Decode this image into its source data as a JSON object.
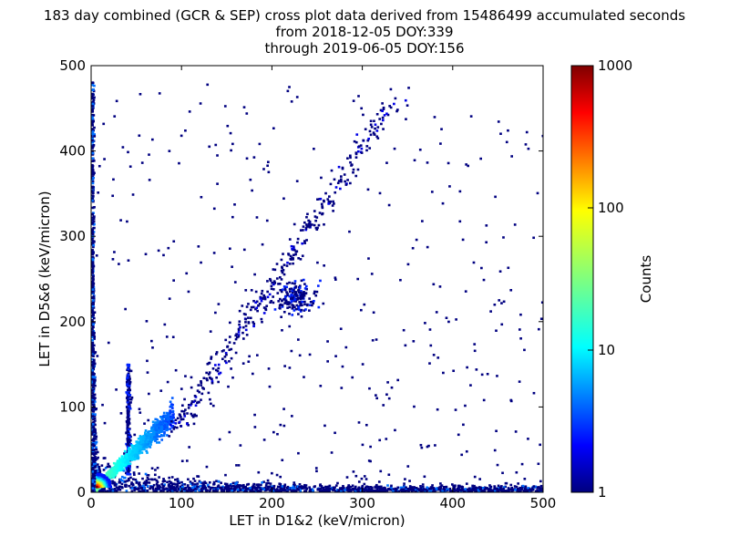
{
  "chart_data": {
    "type": "heatmap",
    "title_lines": [
      "183 day combined (GCR & SEP) cross plot data derived from 15486499 accumulated seconds",
      "from 2018-12-05 DOY:339",
      "through 2019-06-05 DOY:156"
    ],
    "xlabel": "LET in D1&2 (keV/micron)",
    "ylabel": "LET in D5&6 (keV/micron)",
    "xlim": [
      0,
      500
    ],
    "ylim": [
      0,
      500
    ],
    "x_ticks": [
      0,
      100,
      200,
      300,
      400,
      500
    ],
    "y_ticks": [
      0,
      100,
      200,
      300,
      400,
      500
    ],
    "x_tick_labels": [
      "0",
      "100",
      "200",
      "300",
      "400",
      "500"
    ],
    "y_tick_labels": [
      "0",
      "100",
      "200",
      "300",
      "400",
      "500"
    ],
    "colorbar": {
      "label": "Counts",
      "scale": "log",
      "range": [
        1,
        1000
      ],
      "ticks": [
        1,
        10,
        100,
        1000
      ],
      "tick_labels": [
        "1",
        "10",
        "100",
        "1000"
      ],
      "colormap": "jet"
    },
    "structures": [
      {
        "kind": "core",
        "x": 5,
        "y": 5,
        "counts": 1000
      },
      {
        "kind": "diagonal-band",
        "x_range": [
          5,
          90
        ],
        "slope": 1.0,
        "counts": 30
      },
      {
        "kind": "y-axis-band",
        "x": 2,
        "y_range": [
          0,
          480
        ],
        "counts": 5
      },
      {
        "kind": "x-axis-band",
        "y": 5,
        "x_range": [
          0,
          500
        ],
        "counts": 3
      },
      {
        "kind": "vertical-track",
        "x": 40,
        "y_range": [
          20,
          150
        ],
        "counts": 3
      },
      {
        "kind": "upper-diagonal-branch",
        "x_range": [
          90,
          330
        ],
        "y_range": [
          70,
          450
        ],
        "counts": 2
      },
      {
        "kind": "cluster",
        "x": 225,
        "y": 225,
        "counts": 3
      }
    ]
  }
}
